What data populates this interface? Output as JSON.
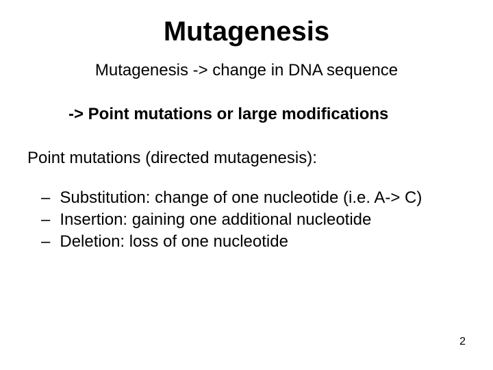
{
  "title": {
    "text": "Mutagenesis",
    "fontsize": 40,
    "weight": "bold"
  },
  "subtitle": {
    "text": "Mutagenesis -> change in DNA sequence",
    "fontsize": 24
  },
  "line_bold": {
    "text": "-> Point mutations or large modifications",
    "fontsize": 24,
    "weight": "bold"
  },
  "section_heading": {
    "text": "Point mutations (directed mutagenesis):",
    "fontsize": 24
  },
  "bullets": {
    "items": [
      {
        "dash": "–",
        "text": "Substitution: change of one nucleotide (i.e. A-> C)"
      },
      {
        "dash": "–",
        "text": "Insertion: gaining one additional nucleotide"
      },
      {
        "dash": "–",
        "text": "Deletion: loss of one nucleotide"
      }
    ],
    "fontsize": 24
  },
  "page_number": {
    "text": "2",
    "fontsize": 16
  },
  "colors": {
    "background": "#ffffff",
    "text": "#000000"
  },
  "typography": {
    "family": "Comic Sans MS",
    "page_num_family": "Arial"
  }
}
